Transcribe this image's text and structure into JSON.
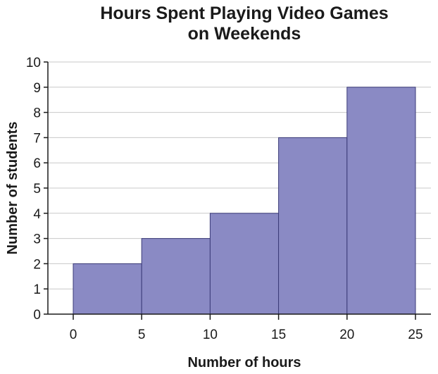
{
  "chart_data": {
    "type": "bar",
    "title": [
      "Hours Spent Playing Video Games",
      "on Weekends"
    ],
    "xlabel": "Number of hours",
    "ylabel": "Number of students",
    "bins": [
      {
        "start": 0,
        "end": 5,
        "count": 2
      },
      {
        "start": 5,
        "end": 10,
        "count": 3
      },
      {
        "start": 10,
        "end": 15,
        "count": 4
      },
      {
        "start": 15,
        "end": 20,
        "count": 7
      },
      {
        "start": 20,
        "end": 25,
        "count": 9
      }
    ],
    "xlim": [
      0,
      25
    ],
    "ylim": [
      0,
      10
    ],
    "x_ticks": [
      "0",
      "5",
      "10",
      "15",
      "20",
      "25"
    ],
    "y_ticks": [
      "0",
      "1",
      "2",
      "3",
      "4",
      "5",
      "6",
      "7",
      "8",
      "9",
      "10"
    ],
    "grid": "horizontal",
    "bar_color": "#8a8ac4",
    "bar_edge_color": "#3b3b78"
  }
}
